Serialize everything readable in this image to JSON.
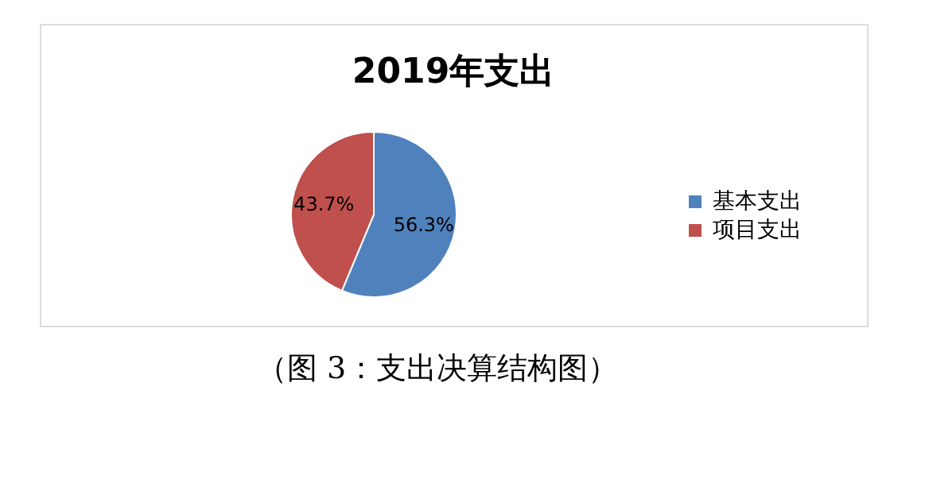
{
  "chart_data": {
    "type": "pie",
    "title": "2019年支出",
    "categories": [
      "基本支出",
      "项目支出"
    ],
    "values": [
      56.3,
      43.7
    ],
    "colors": [
      "#4f81bd",
      "#c0504d"
    ],
    "value_labels": [
      "56.3%",
      "43.7%"
    ],
    "legend": "right",
    "annotations": [
      "（图 3：支出决算结构图）"
    ]
  }
}
